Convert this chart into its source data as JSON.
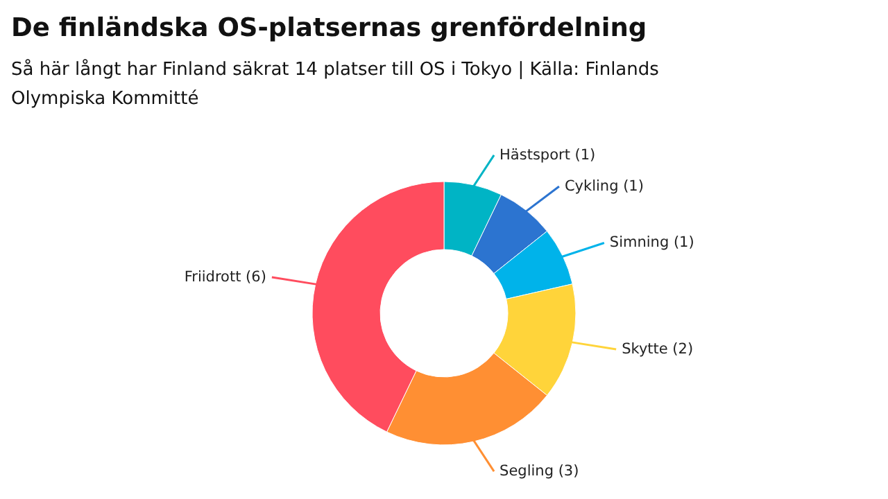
{
  "chart_data": {
    "type": "donut",
    "title": "De finländska OS-platsernas grenfördelning",
    "subtitle": "Så här långt har Finland säkrat 14 platser till OS i Tokyo | Källa: Finlands Olympiska Kommitté",
    "categories": [
      "Hästsport (1)",
      "Cykling (1)",
      "Simning (1)",
      "Skytte (2)",
      "Segling (3)",
      "Friidrott (6)"
    ],
    "values": [
      1,
      1,
      1,
      2,
      3,
      6
    ],
    "colors": [
      "#00b4c5",
      "#2c74d0",
      "#00b3ea",
      "#ffd43a",
      "#ff8f33",
      "#ff4c5e"
    ]
  }
}
